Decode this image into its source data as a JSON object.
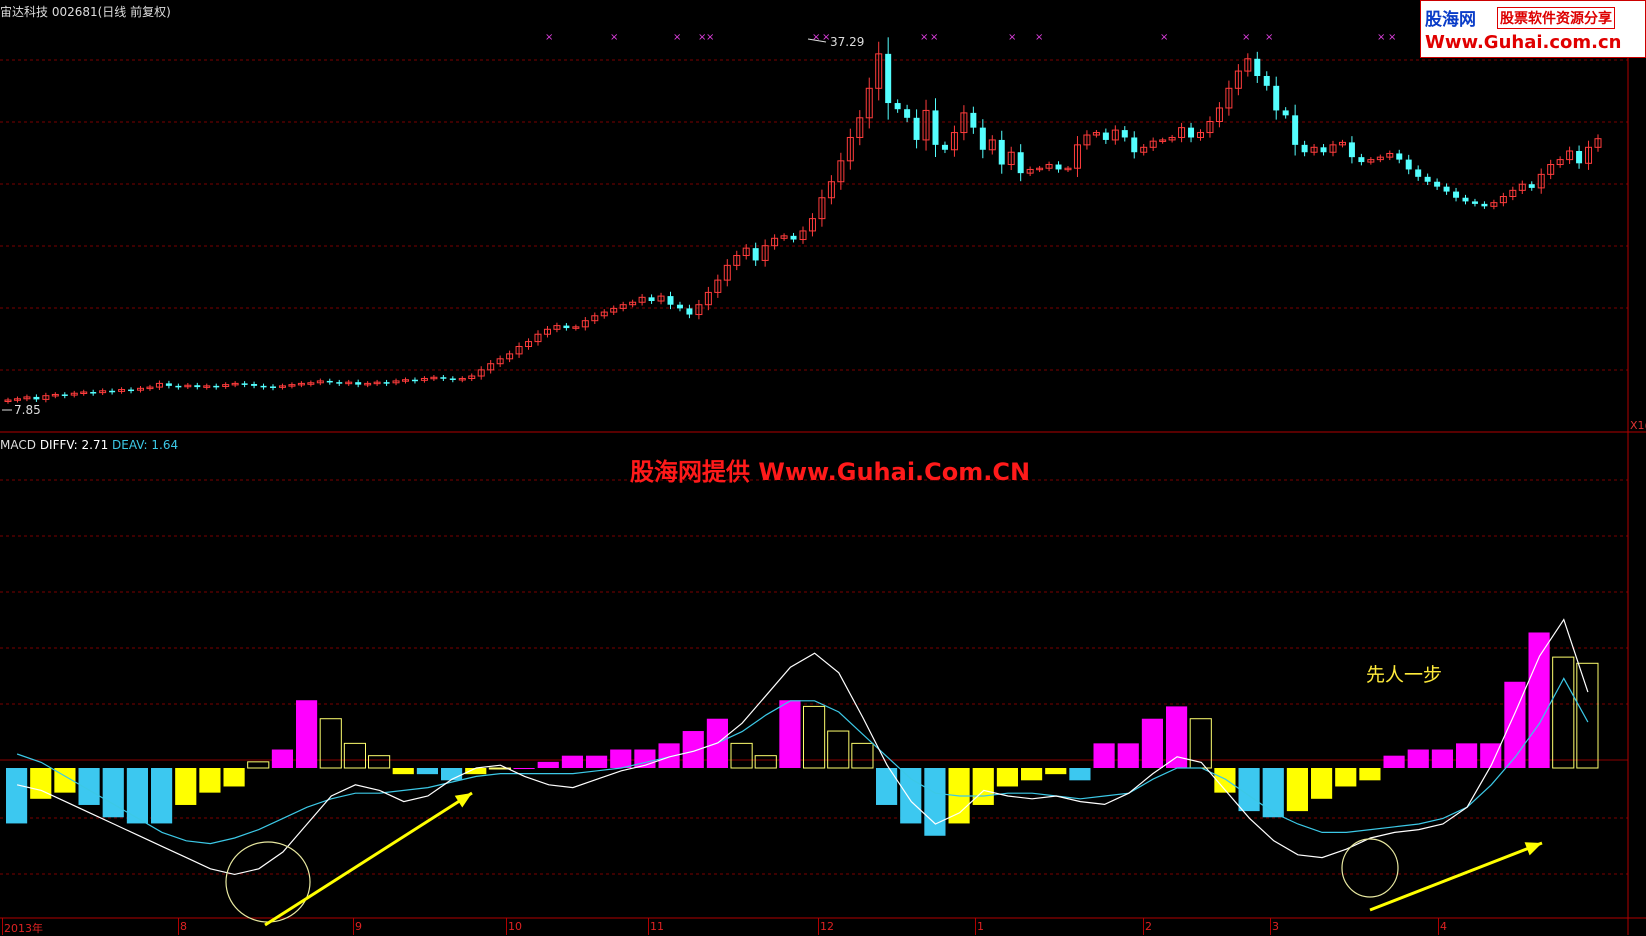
{
  "window": {
    "title": "宙达科技 002681(日线 前复权)"
  },
  "logo": {
    "brand": "股海网",
    "slogan": "股票软件资源分享",
    "url": "Www.Guhai.com.cn"
  },
  "macd_panel": {
    "name": "MACD",
    "diff_label": "DIFFV: 2.71",
    "dea_label": "DEAV: 1.64"
  },
  "watermark": "股海网提供 Www.Guhai.Com.CN",
  "annotation": "先人一步",
  "price_axis": {
    "high_label": "37.29",
    "low_label": "7.85",
    "right_marker": "X1("
  },
  "x_axis_labels": [
    "2013年",
    "8",
    "9",
    "10",
    "11",
    "12",
    "1",
    "2",
    "3",
    "4"
  ],
  "colors": {
    "up": "#ff3c3c",
    "down": "#54ffff",
    "macd_pos_diverge": "#ff00ff",
    "macd_pos_converge": "#ffff6e",
    "macd_neg_diverge": "#3cc8f0",
    "macd_neg_converge": "#ffff00",
    "diff_line": "#ffffff",
    "dea_line": "#3cc8e6",
    "grid": "#7a0000",
    "arrow": "#ffff00"
  },
  "chart_data": [
    {
      "type": "candlestick",
      "title": "宙达科技 002681(日线 前复权)",
      "ylim": [
        7.85,
        37.29
      ],
      "close": [
        7.85,
        7.95,
        8.1,
        7.9,
        8.2,
        8.3,
        8.25,
        8.4,
        8.5,
        8.45,
        8.6,
        8.55,
        8.7,
        8.65,
        8.8,
        8.9,
        9.2,
        9.0,
        8.95,
        9.05,
        8.9,
        9.0,
        8.95,
        9.1,
        9.2,
        9.15,
        9.0,
        8.95,
        8.9,
        9.0,
        9.1,
        9.2,
        9.25,
        9.4,
        9.3,
        9.2,
        9.3,
        9.1,
        9.2,
        9.3,
        9.25,
        9.4,
        9.5,
        9.45,
        9.6,
        9.7,
        9.6,
        9.5,
        9.6,
        9.8,
        10.3,
        10.8,
        11.2,
        11.6,
        12.2,
        12.6,
        13.2,
        13.6,
        13.9,
        13.7,
        13.8,
        14.3,
        14.7,
        15.0,
        15.3,
        15.6,
        15.8,
        16.2,
        15.9,
        16.3,
        15.6,
        15.3,
        14.8,
        15.6,
        16.6,
        17.6,
        18.8,
        19.6,
        20.2,
        19.2,
        20.4,
        21.0,
        21.2,
        20.9,
        21.6,
        22.6,
        24.3,
        25.6,
        27.3,
        29.2,
        30.8,
        33.2,
        36.0,
        32.0,
        31.5,
        30.8,
        29.0,
        31.4,
        28.6,
        28.2,
        29.6,
        31.2,
        30.0,
        28.2,
        29.0,
        27.0,
        28.0,
        26.3,
        26.6,
        26.7,
        27.0,
        26.6,
        26.7,
        28.6,
        29.4,
        29.6,
        29.0,
        29.8,
        29.2,
        28.0,
        28.4,
        28.9,
        29.0,
        29.2,
        30.0,
        29.2,
        29.6,
        30.5,
        31.6,
        33.2,
        34.6,
        35.6,
        34.2,
        33.4,
        31.4,
        31.0,
        28.6,
        28.0,
        28.4,
        28.0,
        28.6,
        28.8,
        27.6,
        27.2,
        27.4,
        27.6,
        27.9,
        27.4,
        26.6,
        26.0,
        25.6,
        25.2,
        24.8,
        24.3,
        24.0,
        23.8,
        23.6,
        23.9,
        24.4,
        24.9,
        25.4,
        25.1,
        26.2,
        27.0,
        27.4,
        28.1,
        27.1,
        28.4,
        29.1
      ]
    },
    {
      "type": "bar",
      "title": "MACD",
      "series": [
        {
          "name": "DIFFV",
          "values": [
            -0.6,
            -0.8,
            -1.2,
            -1.6,
            -2.0,
            -2.4,
            -2.8,
            -3.2,
            -3.6,
            -3.8,
            -3.6,
            -3.0,
            -2.0,
            -1.0,
            -0.6,
            -0.8,
            -1.2,
            -1.0,
            -0.4,
            0.0,
            0.1,
            -0.3,
            -0.6,
            -0.7,
            -0.4,
            -0.1,
            0.1,
            0.4,
            0.6,
            0.9,
            1.6,
            2.6,
            3.6,
            4.1,
            3.4,
            1.8,
            0.1,
            -1.2,
            -2.0,
            -1.6,
            -0.8,
            -1.0,
            -1.1,
            -1.0,
            -1.2,
            -1.3,
            -0.9,
            -0.2,
            0.4,
            0.2,
            -0.8,
            -1.8,
            -2.6,
            -3.1,
            -3.2,
            -2.9,
            -2.5,
            -2.3,
            -2.2,
            -2.0,
            -1.4,
            0.1,
            2.0,
            4.0,
            5.3,
            2.71
          ]
        },
        {
          "name": "DEAV",
          "values": [
            0.5,
            0.2,
            -0.3,
            -0.8,
            -1.3,
            -1.8,
            -2.3,
            -2.6,
            -2.7,
            -2.5,
            -2.2,
            -1.8,
            -1.4,
            -1.1,
            -0.9,
            -0.9,
            -0.8,
            -0.7,
            -0.5,
            -0.3,
            -0.2,
            -0.2,
            -0.2,
            -0.2,
            -0.1,
            0.0,
            0.2,
            0.4,
            0.6,
            0.9,
            1.3,
            1.9,
            2.4,
            2.4,
            2.0,
            1.2,
            0.4,
            -0.4,
            -0.9,
            -1.0,
            -1.0,
            -0.9,
            -0.9,
            -1.0,
            -1.1,
            -1.0,
            -0.9,
            -0.4,
            0.0,
            0.0,
            -0.4,
            -1.0,
            -1.6,
            -2.0,
            -2.3,
            -2.3,
            -2.2,
            -2.1,
            -2.0,
            -1.8,
            -1.4,
            -0.6,
            0.4,
            1.6,
            3.2,
            1.64
          ]
        },
        {
          "name": "MACD",
          "values": [
            -0.9,
            -0.5,
            -0.4,
            -0.6,
            -0.8,
            -0.9,
            -0.9,
            -0.6,
            -0.4,
            -0.3,
            0.1,
            0.3,
            1.1,
            0.8,
            0.4,
            0.2,
            -0.1,
            -0.1,
            -0.2,
            -0.1,
            0.0,
            0.0,
            0.1,
            0.2,
            0.2,
            0.3,
            0.3,
            0.4,
            0.6,
            0.8,
            0.4,
            0.2,
            1.1,
            1.0,
            0.6,
            0.4,
            -0.6,
            -0.9,
            -1.1,
            -0.9,
            -0.6,
            -0.3,
            -0.2,
            -0.1,
            -0.2,
            0.4,
            0.4,
            0.8,
            1.0,
            0.8,
            -0.4,
            -0.7,
            -0.8,
            -0.7,
            -0.5,
            -0.3,
            -0.2,
            0.2,
            0.3,
            0.3,
            0.4,
            0.4,
            1.4,
            2.2,
            1.8,
            1.7
          ]
        }
      ]
    }
  ]
}
